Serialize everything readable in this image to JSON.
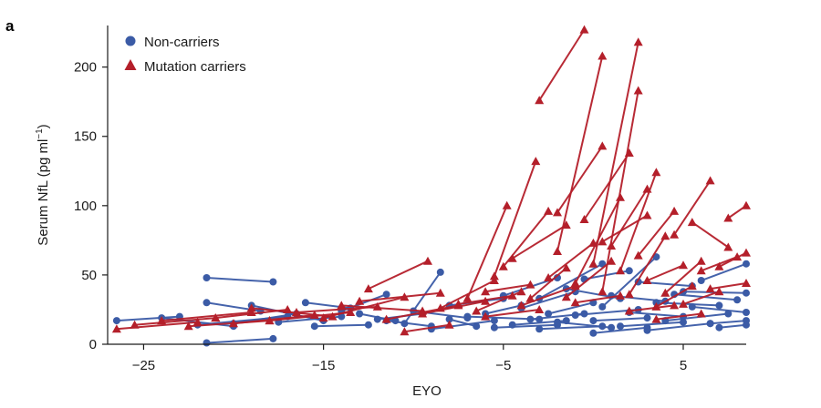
{
  "chart_data": {
    "type": "line",
    "panel_label": "a",
    "xlabel": "EYO",
    "ylabel": "Serum NfL (pg ml",
    "ylabel_superscript": "−1",
    "ylabel_close": ")",
    "xlim": [
      -27,
      8.5
    ],
    "ylim": [
      0,
      230
    ],
    "xticks": [
      -25,
      -15,
      -5,
      5
    ],
    "xtick_labels": [
      "−25",
      "−15",
      "−5",
      "5"
    ],
    "yticks": [
      0,
      50,
      100,
      150,
      200
    ],
    "ytick_labels": [
      "0",
      "50",
      "100",
      "150",
      "200"
    ],
    "grid": false,
    "legend_position": "top-left",
    "colors": {
      "non_carriers": "#3b5ba6",
      "mutation_carriers": "#b41f2a"
    },
    "legend": [
      {
        "label": "Non-carriers",
        "marker": "circle",
        "color": "#3b5ba6"
      },
      {
        "label": "Mutation carriers",
        "marker": "triangle",
        "color": "#b41f2a"
      }
    ],
    "series": [
      {
        "name": "Non-carriers",
        "marker": "circle",
        "color": "#3b5ba6",
        "trajectories": [
          [
            [
              -26.5,
              17
            ],
            [
              -23,
              20
            ]
          ],
          [
            [
              -21.5,
              48
            ],
            [
              -17.8,
              45
            ]
          ],
          [
            [
              -21.5,
              1
            ],
            [
              -17.8,
              4
            ]
          ],
          [
            [
              -21.5,
              30
            ],
            [
              -18.5,
              24
            ]
          ],
          [
            [
              -24,
              19
            ],
            [
              -20,
              13
            ]
          ],
          [
            [
              -22,
              14
            ],
            [
              -17,
              20
            ]
          ],
          [
            [
              -20,
              15
            ],
            [
              -16.5,
              22
            ]
          ],
          [
            [
              -19,
              28
            ],
            [
              -15,
              17
            ]
          ],
          [
            [
              -17.5,
              16
            ],
            [
              -14,
              20
            ]
          ],
          [
            [
              -15.5,
              13
            ],
            [
              -12.5,
              14
            ]
          ],
          [
            [
              -14,
              24
            ],
            [
              -11.5,
              36
            ]
          ],
          [
            [
              -13,
              22
            ],
            [
              -11,
              17
            ]
          ],
          [
            [
              -11.5,
              17
            ],
            [
              -9,
              13
            ]
          ],
          [
            [
              -10.5,
              15
            ],
            [
              -8.5,
              52
            ]
          ],
          [
            [
              -10,
              24
            ],
            [
              -7,
              19
            ]
          ],
          [
            [
              -9,
              11
            ],
            [
              -5.5,
              17
            ]
          ],
          [
            [
              -8,
              18
            ],
            [
              -6.5,
              13
            ]
          ],
          [
            [
              -7,
              20
            ],
            [
              -3,
              18
            ]
          ],
          [
            [
              -6,
              22
            ],
            [
              -4,
              28
            ]
          ],
          [
            [
              -5.5,
              12
            ],
            [
              -2,
              14
            ]
          ],
          [
            [
              -5,
              35
            ],
            [
              -2,
              48
            ]
          ],
          [
            [
              -4.5,
              14
            ],
            [
              -1.5,
              17
            ]
          ],
          [
            [
              -4,
              26
            ],
            [
              -1,
              38
            ]
          ],
          [
            [
              -3.5,
              18
            ],
            [
              -0.5,
              22
            ]
          ],
          [
            [
              -3,
              33
            ],
            [
              0.5,
              58
            ]
          ],
          [
            [
              -2.5,
              22
            ],
            [
              0,
              30
            ]
          ],
          [
            [
              -2,
              16
            ],
            [
              1,
              12
            ]
          ],
          [
            [
              -1.5,
              40
            ],
            [
              1.5,
              33
            ]
          ],
          [
            [
              -1,
              21
            ],
            [
              2.5,
              25
            ]
          ],
          [
            [
              -0.5,
              47
            ],
            [
              2,
              53
            ]
          ],
          [
            [
              0,
              17
            ],
            [
              3,
              19
            ]
          ],
          [
            [
              0.5,
              27
            ],
            [
              3.5,
              63
            ]
          ],
          [
            [
              1,
              35
            ],
            [
              4,
              31
            ]
          ],
          [
            [
              1.5,
              13
            ],
            [
              5,
              16
            ]
          ],
          [
            [
              2,
              23
            ],
            [
              5,
              20
            ]
          ],
          [
            [
              2.5,
              45
            ],
            [
              5.5,
              42
            ]
          ],
          [
            [
              3,
              10
            ],
            [
              6.5,
              15
            ]
          ],
          [
            [
              3.5,
              30
            ],
            [
              7,
              28
            ]
          ],
          [
            [
              4,
              17
            ],
            [
              7.5,
              22
            ]
          ],
          [
            [
              4.5,
              36
            ],
            [
              8,
              32
            ]
          ],
          [
            [
              5,
              38
            ],
            [
              8.5,
              37
            ]
          ],
          [
            [
              5.5,
              27
            ],
            [
              8.5,
              23
            ]
          ],
          [
            [
              6,
              46
            ],
            [
              8.5,
              58
            ]
          ],
          [
            [
              6.5,
              15
            ],
            [
              8.5,
              17
            ]
          ],
          [
            [
              7,
              12
            ],
            [
              8.5,
              14
            ]
          ],
          [
            [
              0,
              8
            ],
            [
              3,
              12
            ]
          ],
          [
            [
              -3,
              11
            ],
            [
              0.5,
              13
            ]
          ],
          [
            [
              -12,
              18
            ],
            [
              -9.5,
              22
            ]
          ],
          [
            [
              -16,
              30
            ],
            [
              -13.5,
              26
            ]
          ],
          [
            [
              -8,
              28
            ],
            [
              -5,
              33
            ]
          ]
        ]
      },
      {
        "name": "Mutation carriers",
        "marker": "triangle",
        "color": "#b41f2a",
        "trajectories": [
          [
            [
              -26.5,
              11
            ],
            [
              -22,
              16
            ]
          ],
          [
            [
              -25.5,
              14
            ],
            [
              -21,
              19
            ]
          ],
          [
            [
              -24,
              17
            ],
            [
              -19,
              23
            ]
          ],
          [
            [
              -22.5,
              13
            ],
            [
              -18,
              17
            ]
          ],
          [
            [
              -21,
              19
            ],
            [
              -17,
              25
            ]
          ],
          [
            [
              -20,
              15
            ],
            [
              -15.5,
              21
            ]
          ],
          [
            [
              -19,
              26
            ],
            [
              -14.5,
              20
            ]
          ],
          [
            [
              -18,
              17
            ],
            [
              -13.5,
              23
            ]
          ],
          [
            [
              -16.5,
              23
            ],
            [
              -12,
              27
            ]
          ],
          [
            [
              -15,
              19
            ],
            [
              -10.5,
              34
            ]
          ],
          [
            [
              -14,
              28
            ],
            [
              -9.5,
              24
            ]
          ],
          [
            [
              -13,
              31
            ],
            [
              -8.5,
              37
            ]
          ],
          [
            [
              -12.5,
              40
            ],
            [
              -9.2,
              60
            ]
          ],
          [
            [
              -11.5,
              18
            ],
            [
              -7.5,
              28
            ]
          ],
          [
            [
              -10.5,
              9
            ],
            [
              -8,
              14
            ]
          ],
          [
            [
              -9.5,
              22
            ],
            [
              -6,
              31
            ]
          ],
          [
            [
              -8.5,
              26
            ],
            [
              -5.5,
              46
            ]
          ],
          [
            [
              -7.5,
              29
            ],
            [
              -4.5,
              35
            ]
          ],
          [
            [
              -7,
              33
            ],
            [
              -4.8,
              100
            ]
          ],
          [
            [
              -6.5,
              24
            ],
            [
              -4,
              38
            ]
          ],
          [
            [
              -6,
              38
            ],
            [
              -3.5,
              43
            ]
          ],
          [
            [
              -5.5,
              49
            ],
            [
              -3.2,
              132
            ]
          ],
          [
            [
              -5,
              56
            ],
            [
              -2.5,
              96
            ]
          ],
          [
            [
              -4.5,
              62
            ],
            [
              -1.5,
              86
            ]
          ],
          [
            [
              -4,
              28
            ],
            [
              -1,
              42
            ]
          ],
          [
            [
              -3.5,
              33
            ],
            [
              -1.5,
              55
            ]
          ],
          [
            [
              -3,
              176
            ],
            [
              -0.5,
              227
            ]
          ],
          [
            [
              -2.5,
              48
            ],
            [
              0,
              73
            ]
          ],
          [
            [
              -2,
              67
            ],
            [
              0.5,
              208
            ]
          ],
          [
            [
              -1.5,
              34
            ],
            [
              1,
              60
            ]
          ],
          [
            [
              -1,
              44
            ],
            [
              1.5,
              106
            ]
          ],
          [
            [
              -0.5,
              90
            ],
            [
              2,
              138
            ]
          ],
          [
            [
              0,
              58
            ],
            [
              2.5,
              218
            ]
          ],
          [
            [
              0.5,
              38
            ],
            [
              2.5,
              183
            ]
          ],
          [
            [
              1,
              71
            ],
            [
              3,
              112
            ]
          ],
          [
            [
              1.5,
              53
            ],
            [
              3.5,
              124
            ]
          ],
          [
            [
              2,
              36
            ],
            [
              4,
              78
            ]
          ],
          [
            [
              2.5,
              64
            ],
            [
              4.5,
              96
            ]
          ],
          [
            [
              3,
              46
            ],
            [
              5,
              57
            ]
          ],
          [
            [
              3.5,
              27
            ],
            [
              5.5,
              42
            ]
          ],
          [
            [
              4,
              37
            ],
            [
              6,
              60
            ]
          ],
          [
            [
              4.5,
              79
            ],
            [
              6.5,
              118
            ]
          ],
          [
            [
              5,
              29
            ],
            [
              7,
              38
            ]
          ],
          [
            [
              5.5,
              88
            ],
            [
              7.5,
              70
            ]
          ],
          [
            [
              6,
              53
            ],
            [
              8,
              63
            ]
          ],
          [
            [
              6.5,
              40
            ],
            [
              8.5,
              44
            ]
          ],
          [
            [
              7,
              56
            ],
            [
              8.5,
              66
            ]
          ],
          [
            [
              7.5,
              91
            ],
            [
              8.5,
              100
            ]
          ],
          [
            [
              -2,
              95
            ],
            [
              0.5,
              143
            ]
          ],
          [
            [
              0.5,
              74
            ],
            [
              3,
              93
            ]
          ],
          [
            [
              -6,
              20
            ],
            [
              -3,
              25
            ]
          ],
          [
            [
              -1,
              30
            ],
            [
              1.5,
              35
            ]
          ],
          [
            [
              3.5,
              18
            ],
            [
              6,
              22
            ]
          ],
          [
            [
              2,
              24
            ],
            [
              4.5,
              28
            ]
          ]
        ]
      }
    ]
  }
}
